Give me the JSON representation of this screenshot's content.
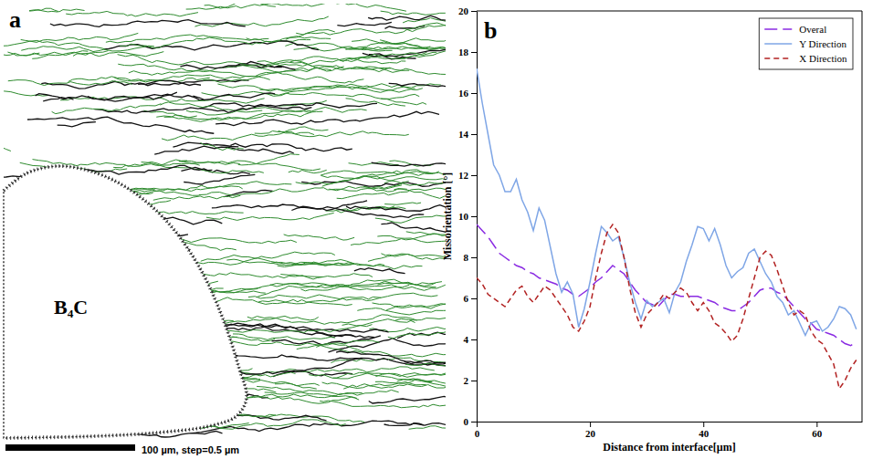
{
  "chart_data": [
    {
      "type": "map",
      "panel": "a",
      "label": "B₄C",
      "scale_bar": "100 µm, step=0.5 µm"
    },
    {
      "type": "line",
      "panel": "b",
      "x_label": "Distance from interface[µm]",
      "y_label": "Missorientation [°]",
      "x": [
        0,
        1,
        2,
        3,
        4,
        5,
        6,
        7,
        8,
        9,
        10,
        11,
        12,
        13,
        14,
        15,
        16,
        17,
        18,
        19,
        20,
        21,
        22,
        23,
        24,
        25,
        26,
        27,
        28,
        29,
        30,
        31,
        32,
        33,
        34,
        35,
        36,
        37,
        38,
        39,
        40,
        41,
        42,
        43,
        44,
        45,
        46,
        47,
        48,
        49,
        50,
        51,
        52,
        53,
        54,
        55,
        56,
        57,
        58,
        59,
        60,
        61,
        62,
        63,
        64,
        65,
        66,
        67
      ],
      "series": [
        {
          "name": "Overal",
          "color": "#8a2be2",
          "line_style": "longdash",
          "values": [
            9.6,
            9.3,
            9.0,
            8.6,
            8.2,
            8.0,
            7.8,
            7.6,
            7.5,
            7.3,
            7.2,
            7.0,
            6.9,
            6.8,
            6.7,
            6.5,
            6.4,
            6.2,
            6.1,
            6.3,
            6.5,
            6.8,
            7.0,
            7.3,
            7.6,
            7.4,
            7.2,
            6.8,
            6.4,
            6.1,
            5.8,
            5.7,
            5.6,
            5.9,
            6.2,
            6.2,
            6.1,
            6.1,
            6.1,
            6.1,
            6.0,
            5.9,
            5.8,
            5.6,
            5.5,
            5.4,
            5.4,
            5.6,
            5.8,
            6.1,
            6.4,
            6.5,
            6.5,
            6.3,
            6.2,
            5.9,
            5.6,
            5.3,
            5.0,
            4.8,
            4.5,
            4.4,
            4.3,
            4.2,
            4.0,
            3.8,
            3.7,
            3.9
          ]
        },
        {
          "name": "Y Direction",
          "color": "#7fa6e6",
          "line_style": "solid",
          "values": [
            17.2,
            15.5,
            14.0,
            12.5,
            12.0,
            11.2,
            11.2,
            11.8,
            10.8,
            10.2,
            9.3,
            10.4,
            9.8,
            8.5,
            7.2,
            6.3,
            6.8,
            6.2,
            4.6,
            5.5,
            6.8,
            8.2,
            9.5,
            9.2,
            8.8,
            9.0,
            8.0,
            6.8,
            5.8,
            5.0,
            5.9,
            5.6,
            5.8,
            6.0,
            5.3,
            6.3,
            6.8,
            7.8,
            8.6,
            9.5,
            9.4,
            8.8,
            9.4,
            8.6,
            7.6,
            7.0,
            7.3,
            7.5,
            8.2,
            8.4,
            7.8,
            7.2,
            6.8,
            6.1,
            5.8,
            5.2,
            5.4,
            4.8,
            4.2,
            4.8,
            4.9,
            4.4,
            4.6,
            5.0,
            5.6,
            5.5,
            5.2,
            4.5
          ]
        },
        {
          "name": "X Direction",
          "color": "#b22222",
          "line_style": "dashed",
          "values": [
            7.0,
            6.7,
            6.2,
            6.0,
            5.8,
            5.6,
            6.0,
            6.4,
            6.6,
            6.1,
            5.8,
            6.2,
            6.6,
            6.4,
            6.0,
            5.6,
            5.2,
            4.6,
            4.4,
            4.9,
            5.6,
            7.0,
            8.2,
            9.2,
            9.6,
            9.2,
            8.0,
            6.5,
            5.3,
            4.6,
            5.2,
            5.5,
            5.8,
            6.2,
            6.0,
            6.3,
            6.5,
            6.3,
            5.8,
            5.4,
            5.8,
            5.4,
            4.8,
            4.6,
            4.3,
            3.9,
            4.2,
            5.0,
            6.0,
            7.0,
            8.0,
            8.3,
            8.1,
            7.4,
            6.6,
            5.8,
            5.2,
            5.4,
            5.2,
            4.4,
            4.0,
            3.8,
            3.3,
            2.8,
            1.6,
            2.0,
            2.6,
            3.0
          ]
        }
      ],
      "xlim": [
        0,
        68
      ],
      "xticks": [
        0,
        20,
        40,
        60
      ],
      "ylim": [
        0,
        20
      ],
      "yticks": [
        0,
        2,
        4,
        6,
        8,
        10,
        12,
        14,
        16,
        18,
        20
      ],
      "legend": "top-right"
    }
  ]
}
